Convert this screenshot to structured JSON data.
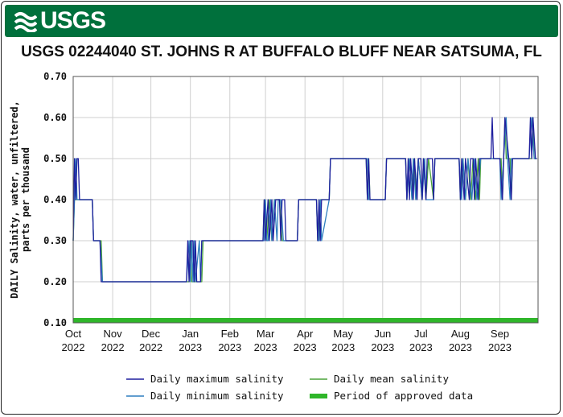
{
  "header": {
    "logo_text": "USGS",
    "title": "USGS 02244040 ST. JOHNS R AT BUFFALO BLUFF NEAR SATSUMA, FL"
  },
  "colors": {
    "banner": "#00703c",
    "max_series": "#1f1f9e",
    "min_series": "#2f7fbf",
    "mean_series": "#4aa43a",
    "approved": "#2fb62a",
    "grid": "#cfcfcf"
  },
  "chart_data": {
    "type": "line",
    "title": "USGS 02244040 ST. JOHNS R AT BUFFALO BLUFF NEAR SATSUMA, FL",
    "ylabel": "DAILY Salinity, water, unfiltered, parts per thousand",
    "ylabel_lines": [
      "DAILY Salinity, water, unfiltered,",
      "parts per thousand"
    ],
    "xlabel": "",
    "ylim": [
      0.1,
      0.7
    ],
    "yticks": [
      0.1,
      0.2,
      0.3,
      0.4,
      0.5,
      0.6,
      0.7
    ],
    "ytick_labels": [
      "0.10",
      "0.20",
      "0.30",
      "0.40",
      "0.50",
      "0.60",
      "0.70"
    ],
    "xlim": [
      "2022-10-01",
      "2023-10-01"
    ],
    "xticks": [
      "2022-10-01",
      "2022-11-01",
      "2022-12-01",
      "2023-01-01",
      "2023-02-01",
      "2023-03-01",
      "2023-04-01",
      "2023-05-01",
      "2023-06-01",
      "2023-07-01",
      "2023-08-01",
      "2023-09-01"
    ],
    "xtick_labels": [
      [
        "Oct",
        "2022"
      ],
      [
        "Nov",
        "2022"
      ],
      [
        "Dec",
        "2022"
      ],
      [
        "Jan",
        "2023"
      ],
      [
        "Feb",
        "2023"
      ],
      [
        "Mar",
        "2023"
      ],
      [
        "Apr",
        "2023"
      ],
      [
        "May",
        "2023"
      ],
      [
        "Jun",
        "2023"
      ],
      [
        "Jul",
        "2023"
      ],
      [
        "Aug",
        "2023"
      ],
      [
        "Sep",
        "2023"
      ]
    ],
    "grid": true,
    "legend_position": "bottom",
    "series": [
      {
        "name": "Daily maximum salinity",
        "color": "#1f1f9e",
        "points": [
          [
            "2022-10-01",
            0.3
          ],
          [
            "2022-10-02",
            0.5
          ],
          [
            "2022-10-03",
            0.4
          ],
          [
            "2022-10-04",
            0.5
          ],
          [
            "2022-10-05",
            0.5
          ],
          [
            "2022-10-06",
            0.4
          ],
          [
            "2022-10-16",
            0.4
          ],
          [
            "2022-10-17",
            0.3
          ],
          [
            "2022-10-22",
            0.3
          ],
          [
            "2022-10-23",
            0.2
          ],
          [
            "2022-12-29",
            0.2
          ],
          [
            "2022-12-30",
            0.3
          ],
          [
            "2022-12-31",
            0.2
          ],
          [
            "2023-01-01",
            0.3
          ],
          [
            "2023-01-03",
            0.3
          ],
          [
            "2023-01-04",
            0.2
          ],
          [
            "2023-01-05",
            0.3
          ],
          [
            "2023-01-06",
            0.2
          ],
          [
            "2023-01-09",
            0.2
          ],
          [
            "2023-01-10",
            0.3
          ],
          [
            "2023-02-27",
            0.3
          ],
          [
            "2023-02-28",
            0.4
          ],
          [
            "2023-03-01",
            0.3
          ],
          [
            "2023-03-03",
            0.4
          ],
          [
            "2023-03-04",
            0.3
          ],
          [
            "2023-03-06",
            0.4
          ],
          [
            "2023-03-07",
            0.3
          ],
          [
            "2023-03-09",
            0.4
          ],
          [
            "2023-03-12",
            0.4
          ],
          [
            "2023-03-13",
            0.3
          ],
          [
            "2023-03-14",
            0.4
          ],
          [
            "2023-03-16",
            0.4
          ],
          [
            "2023-03-17",
            0.3
          ],
          [
            "2023-03-26",
            0.3
          ],
          [
            "2023-03-27",
            0.4
          ],
          [
            "2023-04-10",
            0.4
          ],
          [
            "2023-04-11",
            0.3
          ],
          [
            "2023-04-12",
            0.4
          ],
          [
            "2023-04-13",
            0.3
          ],
          [
            "2023-04-14",
            0.4
          ],
          [
            "2023-04-20",
            0.4
          ],
          [
            "2023-04-21",
            0.5
          ],
          [
            "2023-05-19",
            0.5
          ],
          [
            "2023-05-20",
            0.4
          ],
          [
            "2023-05-21",
            0.5
          ],
          [
            "2023-05-22",
            0.4
          ],
          [
            "2023-06-03",
            0.4
          ],
          [
            "2023-06-04",
            0.5
          ],
          [
            "2023-06-19",
            0.5
          ],
          [
            "2023-06-20",
            0.4
          ],
          [
            "2023-06-21",
            0.5
          ],
          [
            "2023-06-22",
            0.4
          ],
          [
            "2023-06-23",
            0.5
          ],
          [
            "2023-06-25",
            0.4
          ],
          [
            "2023-06-26",
            0.5
          ],
          [
            "2023-06-28",
            0.4
          ],
          [
            "2023-06-29",
            0.5
          ],
          [
            "2023-07-01",
            0.5
          ],
          [
            "2023-07-02",
            0.4
          ],
          [
            "2023-07-03",
            0.5
          ],
          [
            "2023-07-05",
            0.4
          ],
          [
            "2023-07-06",
            0.5
          ],
          [
            "2023-07-10",
            0.5
          ],
          [
            "2023-07-11",
            0.4
          ],
          [
            "2023-07-12",
            0.5
          ],
          [
            "2023-07-31",
            0.5
          ],
          [
            "2023-08-01",
            0.4
          ],
          [
            "2023-08-02",
            0.5
          ],
          [
            "2023-08-04",
            0.4
          ],
          [
            "2023-08-05",
            0.5
          ],
          [
            "2023-08-08",
            0.4
          ],
          [
            "2023-08-09",
            0.5
          ],
          [
            "2023-08-11",
            0.5
          ],
          [
            "2023-08-12",
            0.4
          ],
          [
            "2023-08-13",
            0.5
          ],
          [
            "2023-08-15",
            0.4
          ],
          [
            "2023-08-16",
            0.5
          ],
          [
            "2023-08-25",
            0.5
          ],
          [
            "2023-08-26",
            0.6
          ],
          [
            "2023-08-27",
            0.5
          ],
          [
            "2023-09-01",
            0.5
          ],
          [
            "2023-09-03",
            0.4
          ],
          [
            "2023-09-04",
            0.5
          ],
          [
            "2023-09-05",
            0.6
          ],
          [
            "2023-09-08",
            0.5
          ],
          [
            "2023-09-10",
            0.4
          ],
          [
            "2023-09-11",
            0.5
          ],
          [
            "2023-09-24",
            0.5
          ],
          [
            "2023-09-25",
            0.6
          ],
          [
            "2023-09-26",
            0.5
          ],
          [
            "2023-09-27",
            0.6
          ],
          [
            "2023-09-29",
            0.5
          ],
          [
            "2023-09-30",
            0.5
          ]
        ]
      },
      {
        "name": "Daily minimum salinity",
        "color": "#2f7fbf",
        "points": [
          [
            "2022-10-01",
            0.3
          ],
          [
            "2022-10-02",
            0.4
          ],
          [
            "2022-10-03",
            0.5
          ],
          [
            "2022-10-04",
            0.4
          ],
          [
            "2022-10-06",
            0.4
          ],
          [
            "2022-10-16",
            0.4
          ],
          [
            "2022-10-17",
            0.3
          ],
          [
            "2022-10-22",
            0.3
          ],
          [
            "2022-10-24",
            0.2
          ],
          [
            "2022-12-29",
            0.2
          ],
          [
            "2022-12-31",
            0.3
          ],
          [
            "2023-01-01",
            0.2
          ],
          [
            "2023-01-02",
            0.3
          ],
          [
            "2023-01-03",
            0.2
          ],
          [
            "2023-01-04",
            0.3
          ],
          [
            "2023-01-05",
            0.2
          ],
          [
            "2023-01-08",
            0.3
          ],
          [
            "2023-01-09",
            0.2
          ],
          [
            "2023-01-10",
            0.3
          ],
          [
            "2023-02-27",
            0.3
          ],
          [
            "2023-02-28",
            0.3
          ],
          [
            "2023-03-01",
            0.4
          ],
          [
            "2023-03-02",
            0.3
          ],
          [
            "2023-03-03",
            0.3
          ],
          [
            "2023-03-05",
            0.4
          ],
          [
            "2023-03-06",
            0.3
          ],
          [
            "2023-03-08",
            0.4
          ],
          [
            "2023-03-10",
            0.3
          ],
          [
            "2023-03-11",
            0.4
          ],
          [
            "2023-03-13",
            0.4
          ],
          [
            "2023-03-15",
            0.3
          ],
          [
            "2023-03-17",
            0.3
          ],
          [
            "2023-03-26",
            0.3
          ],
          [
            "2023-03-27",
            0.4
          ],
          [
            "2023-04-10",
            0.4
          ],
          [
            "2023-04-11",
            0.3
          ],
          [
            "2023-04-12",
            0.3
          ],
          [
            "2023-04-13",
            0.4
          ],
          [
            "2023-04-14",
            0.3
          ],
          [
            "2023-04-20",
            0.4
          ],
          [
            "2023-04-21",
            0.5
          ],
          [
            "2023-05-19",
            0.5
          ],
          [
            "2023-05-20",
            0.5
          ],
          [
            "2023-05-21",
            0.4
          ],
          [
            "2023-06-03",
            0.4
          ],
          [
            "2023-06-04",
            0.5
          ],
          [
            "2023-06-19",
            0.5
          ],
          [
            "2023-06-20",
            0.4
          ],
          [
            "2023-06-22",
            0.5
          ],
          [
            "2023-06-24",
            0.4
          ],
          [
            "2023-06-25",
            0.5
          ],
          [
            "2023-06-27",
            0.4
          ],
          [
            "2023-06-29",
            0.5
          ],
          [
            "2023-07-02",
            0.4
          ],
          [
            "2023-07-04",
            0.5
          ],
          [
            "2023-07-05",
            0.4
          ],
          [
            "2023-07-07",
            0.4
          ],
          [
            "2023-07-11",
            0.4
          ],
          [
            "2023-07-12",
            0.5
          ],
          [
            "2023-07-31",
            0.5
          ],
          [
            "2023-08-02",
            0.4
          ],
          [
            "2023-08-03",
            0.5
          ],
          [
            "2023-08-05",
            0.4
          ],
          [
            "2023-08-07",
            0.5
          ],
          [
            "2023-08-10",
            0.4
          ],
          [
            "2023-08-12",
            0.5
          ],
          [
            "2023-08-14",
            0.4
          ],
          [
            "2023-08-17",
            0.5
          ],
          [
            "2023-08-25",
            0.5
          ],
          [
            "2023-09-01",
            0.5
          ],
          [
            "2023-09-02",
            0.4
          ],
          [
            "2023-09-04",
            0.5
          ],
          [
            "2023-09-06",
            0.6
          ],
          [
            "2023-09-07",
            0.5
          ],
          [
            "2023-09-09",
            0.4
          ],
          [
            "2023-09-10",
            0.5
          ],
          [
            "2023-09-24",
            0.5
          ],
          [
            "2023-09-26",
            0.6
          ],
          [
            "2023-09-28",
            0.5
          ],
          [
            "2023-09-30",
            0.5
          ]
        ]
      },
      {
        "name": "Daily mean salinity",
        "color": "#4aa43a",
        "points": [
          [
            "2022-10-01",
            0.3
          ],
          [
            "2022-10-02",
            0.4
          ],
          [
            "2022-10-16",
            0.4
          ],
          [
            "2022-10-17",
            0.3
          ],
          [
            "2022-10-23",
            0.3
          ],
          [
            "2022-10-24",
            0.2
          ],
          [
            "2022-12-31",
            0.2
          ],
          [
            "2023-01-01",
            0.3
          ],
          [
            "2023-01-02",
            0.2
          ],
          [
            "2023-01-10",
            0.2
          ],
          [
            "2023-01-11",
            0.3
          ],
          [
            "2023-02-27",
            0.3
          ],
          [
            "2023-02-28",
            0.4
          ],
          [
            "2023-03-02",
            0.3
          ],
          [
            "2023-03-04",
            0.4
          ],
          [
            "2023-03-06",
            0.3
          ],
          [
            "2023-03-08",
            0.4
          ],
          [
            "2023-03-12",
            0.4
          ],
          [
            "2023-03-14",
            0.3
          ],
          [
            "2023-03-26",
            0.3
          ],
          [
            "2023-03-27",
            0.4
          ],
          [
            "2023-04-10",
            0.4
          ],
          [
            "2023-04-11",
            0.3
          ],
          [
            "2023-04-13",
            0.4
          ],
          [
            "2023-04-20",
            0.4
          ],
          [
            "2023-04-21",
            0.5
          ],
          [
            "2023-05-19",
            0.5
          ],
          [
            "2023-05-20",
            0.4
          ],
          [
            "2023-05-21",
            0.5
          ],
          [
            "2023-05-22",
            0.4
          ],
          [
            "2023-06-03",
            0.4
          ],
          [
            "2023-06-04",
            0.5
          ],
          [
            "2023-06-19",
            0.5
          ],
          [
            "2023-06-20",
            0.4
          ],
          [
            "2023-06-22",
            0.5
          ],
          [
            "2023-06-24",
            0.4
          ],
          [
            "2023-06-26",
            0.5
          ],
          [
            "2023-06-27",
            0.4
          ],
          [
            "2023-06-29",
            0.5
          ],
          [
            "2023-07-02",
            0.4
          ],
          [
            "2023-07-03",
            0.5
          ],
          [
            "2023-07-05",
            0.4
          ],
          [
            "2023-07-07",
            0.5
          ],
          [
            "2023-07-11",
            0.4
          ],
          [
            "2023-07-12",
            0.5
          ],
          [
            "2023-07-31",
            0.5
          ],
          [
            "2023-08-01",
            0.4
          ],
          [
            "2023-08-03",
            0.5
          ],
          [
            "2023-08-05",
            0.4
          ],
          [
            "2023-08-07",
            0.5
          ],
          [
            "2023-08-09",
            0.4
          ],
          [
            "2023-08-11",
            0.5
          ],
          [
            "2023-08-13",
            0.4
          ],
          [
            "2023-08-15",
            0.5
          ],
          [
            "2023-08-16",
            0.4
          ],
          [
            "2023-08-17",
            0.5
          ],
          [
            "2023-09-02",
            0.5
          ],
          [
            "2023-09-03",
            0.4
          ],
          [
            "2023-09-04",
            0.5
          ],
          [
            "2023-09-05",
            0.6
          ],
          [
            "2023-09-06",
            0.5
          ],
          [
            "2023-09-09",
            0.5
          ],
          [
            "2023-09-10",
            0.4
          ],
          [
            "2023-09-11",
            0.5
          ],
          [
            "2023-09-26",
            0.5
          ],
          [
            "2023-09-27",
            0.6
          ],
          [
            "2023-09-28",
            0.5
          ],
          [
            "2023-09-30",
            0.5
          ]
        ]
      }
    ],
    "approved_period": {
      "name": "Period of approved data",
      "color": "#2fb62a",
      "start": "2022-10-01",
      "end": "2023-10-01"
    },
    "legend": [
      {
        "label": "Daily maximum salinity",
        "color": "#1f1f9e",
        "kind": "line"
      },
      {
        "label": "Daily mean salinity",
        "color": "#4aa43a",
        "kind": "line"
      },
      {
        "label": "Daily minimum salinity",
        "color": "#2f7fbf",
        "kind": "line"
      },
      {
        "label": "Period of approved data",
        "color": "#2fb62a",
        "kind": "bar"
      }
    ]
  }
}
